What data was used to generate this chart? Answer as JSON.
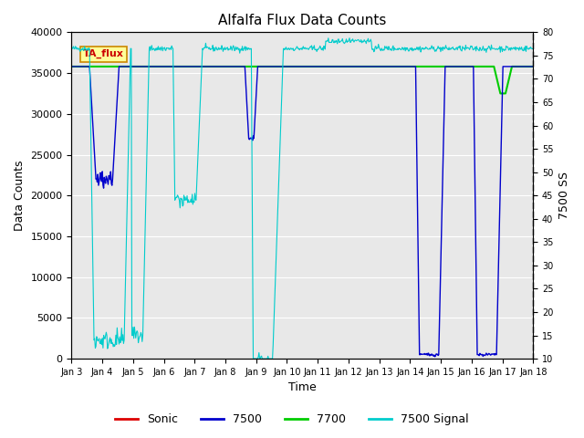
{
  "title": "Alfalfa Flux Data Counts",
  "xlabel": "Time",
  "ylabel": "Data Counts",
  "ylabel_right": "7500 SS",
  "annotation": "TA_flux",
  "xlim_days": [
    0,
    15
  ],
  "ylim_left": [
    0,
    40000
  ],
  "ylim_right": [
    10,
    80
  ],
  "x_tick_labels": [
    "Jan 3",
    "Jan 4",
    "Jan 5",
    "Jan 6",
    "Jan 7",
    "Jan 8",
    "Jan 9",
    "Jan 10",
    "Jan 11",
    "Jan 12",
    "Jan 13",
    "Jan 14",
    "Jan 15",
    "Jan 16",
    "Jan 17",
    "Jan 18"
  ],
  "bg_color": "#e8e8e8",
  "colors": {
    "sonic": "#dd0000",
    "7500": "#0000cc",
    "7700": "#00cc00",
    "7500signal": "#00cccc"
  },
  "legend_labels": [
    "Sonic",
    "7500",
    "7700",
    "7500 Signal"
  ]
}
